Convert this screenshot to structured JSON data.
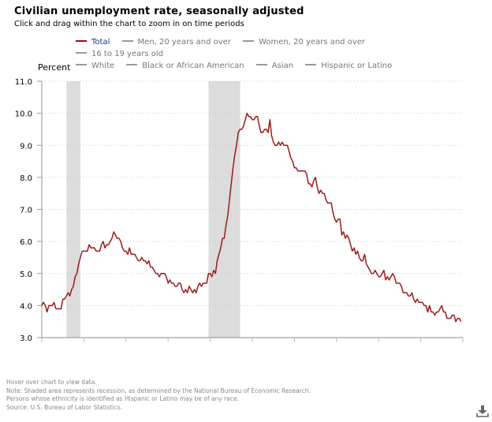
{
  "header": {
    "title": "Civilian unemployment rate, seasonally adjusted",
    "subtitle": "Click and drag within the chart to zoom in on time periods"
  },
  "legend": [
    {
      "label": "Total",
      "active": true
    },
    {
      "label": "Men, 20 years and over",
      "active": false
    },
    {
      "label": "Women, 20 years and over",
      "active": false
    },
    {
      "label": "16 to 19 years old",
      "active": false
    },
    {
      "label": "White",
      "active": false
    },
    {
      "label": "Black or African American",
      "active": false
    },
    {
      "label": "Asian",
      "active": false
    },
    {
      "label": "Hispanic or Latino",
      "active": false
    }
  ],
  "colors": {
    "total_line": "#9b1b1b",
    "inactive_line": "#999999",
    "recession": "#dcdcdc",
    "grid": "#c8c8c8",
    "axis": "#999999"
  },
  "footer": {
    "lines": [
      "Hover over chart to view data.",
      "Note: Shaded area represents recession, as determined by the National Bureau of Economic Research.",
      "Persons whose ethnicity is identified as Hispanic or Latino may be of any race.",
      "Source: U.S. Bureau of Labor Statistics."
    ]
  },
  "download": {
    "icon": "download-icon"
  },
  "chart_data": {
    "type": "line",
    "title": "Civilian unemployment rate, seasonally adjusted",
    "xlabel": "",
    "ylabel": "Percent",
    "ylim": [
      3.0,
      11.0
    ],
    "yticks": [
      "3.0",
      "4.0",
      "5.0",
      "6.0",
      "7.0",
      "8.0",
      "9.0",
      "10.0",
      "11.0"
    ],
    "xlim": [
      2000.0,
      2020.0
    ],
    "xticks_count": 11,
    "xtick_labels_visible": false,
    "grid": "horizontal-dotted",
    "legend_position": "top",
    "recessions": [
      [
        2001.17,
        2001.83
      ],
      [
        2007.92,
        2009.42
      ]
    ],
    "series": [
      {
        "name": "Total",
        "start": 2000.0,
        "step": "monthly",
        "values": [
          4.0,
          4.1,
          4.0,
          3.8,
          4.0,
          4.0,
          4.0,
          4.1,
          3.9,
          3.9,
          3.9,
          3.9,
          4.2,
          4.2,
          4.3,
          4.4,
          4.3,
          4.5,
          4.6,
          4.9,
          5.0,
          5.3,
          5.5,
          5.7,
          5.7,
          5.7,
          5.7,
          5.9,
          5.8,
          5.8,
          5.8,
          5.7,
          5.7,
          5.7,
          5.9,
          6.0,
          5.8,
          5.9,
          5.9,
          6.0,
          6.1,
          6.3,
          6.2,
          6.1,
          6.1,
          6.0,
          5.8,
          5.7,
          5.7,
          5.6,
          5.8,
          5.6,
          5.6,
          5.6,
          5.5,
          5.4,
          5.4,
          5.5,
          5.4,
          5.4,
          5.3,
          5.4,
          5.2,
          5.2,
          5.1,
          5.0,
          5.0,
          4.9,
          5.0,
          5.0,
          5.0,
          4.9,
          4.7,
          4.8,
          4.7,
          4.7,
          4.6,
          4.6,
          4.7,
          4.7,
          4.5,
          4.4,
          4.5,
          4.4,
          4.6,
          4.5,
          4.4,
          4.5,
          4.4,
          4.6,
          4.7,
          4.6,
          4.7,
          4.7,
          4.7,
          5.0,
          5.0,
          4.9,
          5.1,
          5.0,
          5.4,
          5.6,
          5.8,
          6.1,
          6.1,
          6.5,
          6.8,
          7.3,
          7.8,
          8.3,
          8.7,
          9.0,
          9.4,
          9.5,
          9.5,
          9.6,
          9.8,
          10.0,
          9.9,
          9.9,
          9.8,
          9.8,
          9.9,
          9.9,
          9.6,
          9.4,
          9.4,
          9.5,
          9.5,
          9.4,
          9.8,
          9.3,
          9.1,
          9.0,
          9.0,
          9.1,
          9.0,
          9.1,
          9.0,
          9.0,
          9.0,
          8.8,
          8.6,
          8.5,
          8.3,
          8.3,
          8.2,
          8.2,
          8.2,
          8.2,
          8.2,
          8.1,
          7.8,
          7.8,
          7.7,
          7.9,
          8.0,
          7.7,
          7.5,
          7.6,
          7.5,
          7.5,
          7.3,
          7.2,
          7.2,
          7.2,
          6.9,
          6.7,
          6.6,
          6.7,
          6.7,
          6.2,
          6.3,
          6.1,
          6.2,
          6.1,
          5.9,
          5.7,
          5.8,
          5.6,
          5.7,
          5.5,
          5.4,
          5.4,
          5.6,
          5.3,
          5.2,
          5.1,
          5.0,
          5.0,
          5.1,
          5.0,
          4.9,
          4.9,
          5.0,
          5.1,
          4.8,
          4.9,
          4.8,
          4.9,
          5.0,
          4.9,
          4.7,
          4.7,
          4.7,
          4.6,
          4.4,
          4.4,
          4.4,
          4.3,
          4.3,
          4.4,
          4.2,
          4.1,
          4.2,
          4.1,
          4.1,
          4.1,
          4.0,
          4.0,
          3.8,
          4.0,
          3.8,
          3.8,
          3.7,
          3.8,
          3.8,
          3.9,
          4.0,
          3.8,
          3.8,
          3.6,
          3.6,
          3.6,
          3.7,
          3.7,
          3.5,
          3.6,
          3.6,
          3.5
        ]
      }
    ]
  }
}
